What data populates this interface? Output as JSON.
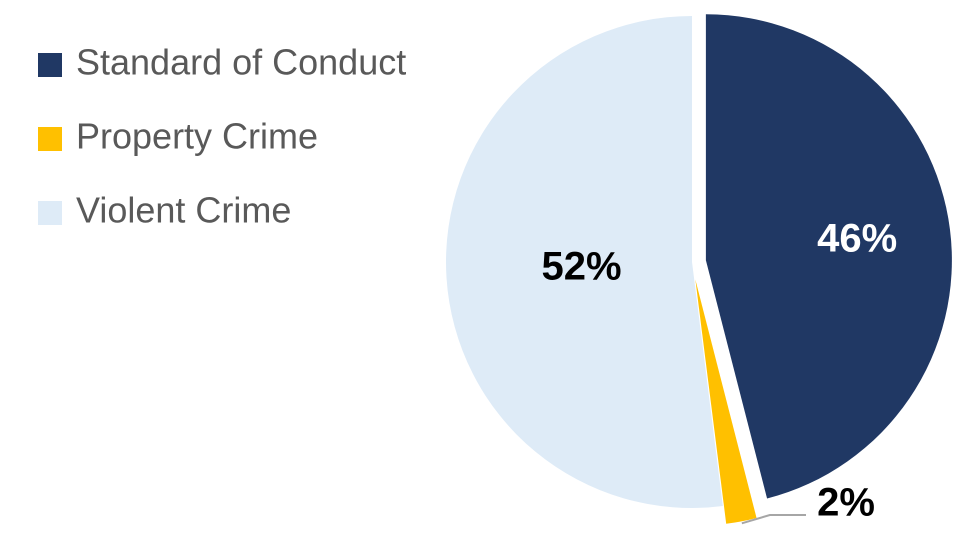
{
  "chart_data": {
    "type": "pie",
    "categories": [
      "Standard of Conduct",
      "Property Crime",
      "Violent Crime"
    ],
    "values": [
      46,
      2,
      52
    ],
    "data_labels": [
      "46%",
      "2%",
      "52%"
    ],
    "colors": [
      "#203864",
      "#FFC000",
      "#DEEBF7"
    ],
    "label_colors": [
      "#FFFFFF",
      "#000000",
      "#000000"
    ],
    "legend_position": "left",
    "title": ""
  }
}
